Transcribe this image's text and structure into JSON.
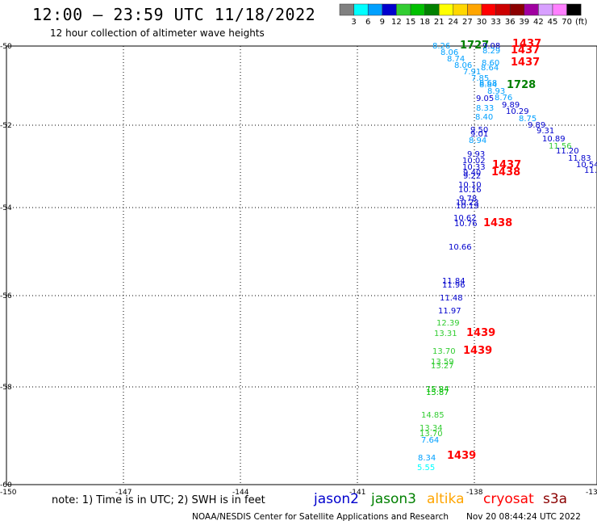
{
  "header": {
    "title": "12:00 — 23:59 UTC 11/18/2022",
    "subtitle": "12 hour collection of altimeter wave heights"
  },
  "legend": {
    "unit": "(ft)",
    "bins": [
      {
        "label": "3",
        "color": "#808080"
      },
      {
        "label": "6",
        "color": "#00ffff"
      },
      {
        "label": "9",
        "color": "#00a0ff"
      },
      {
        "label": "12",
        "color": "#0000cd"
      },
      {
        "label": "15",
        "color": "#32cd32"
      },
      {
        "label": "18",
        "color": "#00c000"
      },
      {
        "label": "21",
        "color": "#008000"
      },
      {
        "label": "24",
        "color": "#ffff00"
      },
      {
        "label": "27",
        "color": "#ffd700"
      },
      {
        "label": "30",
        "color": "#ffa500"
      },
      {
        "label": "33",
        "color": "#ff0000"
      },
      {
        "label": "36",
        "color": "#cc0000"
      },
      {
        "label": "39",
        "color": "#8b0000"
      },
      {
        "label": "42",
        "color": "#a000a0"
      },
      {
        "label": "45",
        "color": "#d8a0ff"
      },
      {
        "label": "70",
        "color": "#ff80ff"
      },
      {
        "label": "",
        "color": "#000000"
      }
    ]
  },
  "axes": {
    "lat_labels": [
      "-50",
      "-52",
      "-54",
      "-56",
      "-58",
      "-60"
    ],
    "lon_labels": [
      "-150",
      "-147",
      "-144",
      "-141",
      "-138",
      "-13"
    ]
  },
  "observations": [
    {
      "text": "8.26",
      "color": "#00a0ff"
    },
    {
      "text": "1727",
      "color": "#008000"
    },
    {
      "text": "9.08",
      "color": "#0000cd"
    },
    {
      "text": "1437",
      "color": "#ff0000"
    },
    {
      "text": "8.06",
      "color": "#00a0ff"
    },
    {
      "text": "8.29",
      "color": "#00a0ff"
    },
    {
      "text": "1437",
      "color": "#ff0000"
    },
    {
      "text": "8.74",
      "color": "#00a0ff"
    },
    {
      "text": "8.06",
      "color": "#00a0ff"
    },
    {
      "text": "8.60",
      "color": "#00a0ff"
    },
    {
      "text": "1437",
      "color": "#ff0000"
    },
    {
      "text": "8.64",
      "color": "#00a0ff"
    },
    {
      "text": "7.91",
      "color": "#00a0ff"
    },
    {
      "text": "7.85",
      "color": "#00a0ff"
    },
    {
      "text": "8.68",
      "color": "#00a0ff"
    },
    {
      "text": "8.84",
      "color": "#00a0ff"
    },
    {
      "text": "1728",
      "color": "#008000"
    },
    {
      "text": "8.93",
      "color": "#00a0ff"
    },
    {
      "text": "9.05",
      "color": "#0000cd"
    },
    {
      "text": "8.76",
      "color": "#00a0ff"
    },
    {
      "text": "9.89",
      "color": "#0000cd"
    },
    {
      "text": "8.33",
      "color": "#00a0ff"
    },
    {
      "text": "10.29",
      "color": "#0000cd"
    },
    {
      "text": "8.40",
      "color": "#00a0ff"
    },
    {
      "text": "8.75",
      "color": "#00a0ff"
    },
    {
      "text": "9.89",
      "color": "#0000cd"
    },
    {
      "text": "9.50",
      "color": "#0000cd"
    },
    {
      "text": "9.31",
      "color": "#0000cd"
    },
    {
      "text": "9.01",
      "color": "#0000cd"
    },
    {
      "text": "10.89",
      "color": "#0000cd"
    },
    {
      "text": "8.94",
      "color": "#00a0ff"
    },
    {
      "text": "11.56",
      "color": "#32cd32"
    },
    {
      "text": "11.20",
      "color": "#0000cd"
    },
    {
      "text": "9.93",
      "color": "#0000cd"
    },
    {
      "text": "11.83",
      "color": "#0000cd"
    },
    {
      "text": "10.02",
      "color": "#0000cd"
    },
    {
      "text": "10.54",
      "color": "#0000cd"
    },
    {
      "text": "10.33",
      "color": "#0000cd"
    },
    {
      "text": "1437",
      "color": "#ff0000"
    },
    {
      "text": "11.",
      "color": "#0000cd"
    },
    {
      "text": "9.40",
      "color": "#0000cd"
    },
    {
      "text": "1438",
      "color": "#ff0000"
    },
    {
      "text": "9.22",
      "color": "#0000cd"
    },
    {
      "text": "10.10",
      "color": "#0000cd"
    },
    {
      "text": "10.16",
      "color": "#0000cd"
    },
    {
      "text": "9.78",
      "color": "#0000cd"
    },
    {
      "text": "10.23",
      "color": "#0000cd"
    },
    {
      "text": "10.19",
      "color": "#0000cd"
    },
    {
      "text": "10.62",
      "color": "#0000cd"
    },
    {
      "text": "10.76",
      "color": "#0000cd"
    },
    {
      "text": "1438",
      "color": "#ff0000"
    },
    {
      "text": "10.66",
      "color": "#0000cd"
    },
    {
      "text": "11.84",
      "color": "#0000cd"
    },
    {
      "text": "11.96",
      "color": "#0000cd"
    },
    {
      "text": "11.48",
      "color": "#0000cd"
    },
    {
      "text": "11.97",
      "color": "#0000cd"
    },
    {
      "text": "12.39",
      "color": "#32cd32"
    },
    {
      "text": "13.31",
      "color": "#32cd32"
    },
    {
      "text": "1439",
      "color": "#ff0000"
    },
    {
      "text": "13.70",
      "color": "#32cd32"
    },
    {
      "text": "1439",
      "color": "#ff0000"
    },
    {
      "text": "13.59",
      "color": "#32cd32"
    },
    {
      "text": "13.27",
      "color": "#32cd32"
    },
    {
      "text": "15.84",
      "color": "#00c000"
    },
    {
      "text": "15.87",
      "color": "#00c000"
    },
    {
      "text": "14.85",
      "color": "#32cd32"
    },
    {
      "text": "13.34",
      "color": "#32cd32"
    },
    {
      "text": "13.70",
      "color": "#32cd32"
    },
    {
      "text": "7.64",
      "color": "#00a0ff"
    },
    {
      "text": "8.34",
      "color": "#00a0ff"
    },
    {
      "text": "1439",
      "color": "#ff0000"
    },
    {
      "text": "5.55",
      "color": "#00ffff"
    }
  ],
  "footer": {
    "note": "note: 1) Time is in UTC; 2) SWH is in feet",
    "satellites": [
      {
        "name": "jason2",
        "color": "#0000cd"
      },
      {
        "name": "jason3",
        "color": "#008000"
      },
      {
        "name": "altika",
        "color": "#ffa500"
      },
      {
        "name": "cryosat",
        "color": "#ff0000"
      },
      {
        "name": "s3a",
        "color": "#8b0000"
      }
    ],
    "credit": "NOAA/NESDIS Center for Satellite Applications and Research",
    "timestamp": "Nov 20 08:44:24 UTC 2022"
  }
}
